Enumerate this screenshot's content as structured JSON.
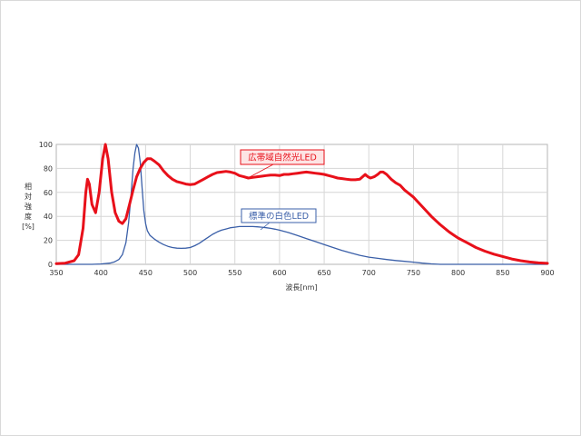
{
  "chart_data": {
    "type": "line",
    "title": "",
    "xlabel": "波長[nm]",
    "ylabel": [
      "相",
      "対",
      "強",
      "度",
      "[%]"
    ],
    "xlim": [
      350,
      900
    ],
    "ylim": [
      0,
      100
    ],
    "x_ticks": [
      350,
      400,
      450,
      500,
      550,
      600,
      650,
      700,
      750,
      800,
      850,
      900
    ],
    "y_ticks": [
      0,
      20,
      40,
      60,
      80,
      100
    ],
    "grid": true,
    "legend": "inline labels",
    "series": [
      {
        "name": "広帯域自然光LED",
        "color": "#e8101a",
        "points": [
          [
            350,
            0.5
          ],
          [
            360,
            1
          ],
          [
            370,
            3
          ],
          [
            375,
            8
          ],
          [
            380,
            30
          ],
          [
            383,
            60
          ],
          [
            385,
            71
          ],
          [
            387,
            67
          ],
          [
            390,
            50
          ],
          [
            394,
            43
          ],
          [
            398,
            60
          ],
          [
            402,
            88
          ],
          [
            405,
            100
          ],
          [
            408,
            88
          ],
          [
            412,
            60
          ],
          [
            416,
            43
          ],
          [
            420,
            36
          ],
          [
            424,
            34
          ],
          [
            428,
            38
          ],
          [
            432,
            50
          ],
          [
            436,
            62
          ],
          [
            440,
            73
          ],
          [
            444,
            80
          ],
          [
            448,
            85
          ],
          [
            452,
            88
          ],
          [
            456,
            88
          ],
          [
            460,
            86
          ],
          [
            465,
            83
          ],
          [
            470,
            78
          ],
          [
            475,
            74
          ],
          [
            480,
            71
          ],
          [
            485,
            69
          ],
          [
            490,
            68
          ],
          [
            495,
            67
          ],
          [
            500,
            66.5
          ],
          [
            505,
            67
          ],
          [
            510,
            69
          ],
          [
            515,
            71
          ],
          [
            520,
            73
          ],
          [
            525,
            75
          ],
          [
            530,
            76.5
          ],
          [
            535,
            77
          ],
          [
            540,
            77.5
          ],
          [
            545,
            77
          ],
          [
            550,
            76
          ],
          [
            555,
            74
          ],
          [
            560,
            73
          ],
          [
            565,
            72
          ],
          [
            570,
            72.5
          ],
          [
            575,
            73
          ],
          [
            580,
            73.5
          ],
          [
            585,
            74
          ],
          [
            590,
            74.5
          ],
          [
            595,
            74.5
          ],
          [
            600,
            74
          ],
          [
            605,
            75
          ],
          [
            610,
            75
          ],
          [
            615,
            75.5
          ],
          [
            620,
            76
          ],
          [
            625,
            76.5
          ],
          [
            630,
            77
          ],
          [
            635,
            76.5
          ],
          [
            640,
            76
          ],
          [
            645,
            75.5
          ],
          [
            650,
            75
          ],
          [
            655,
            74
          ],
          [
            660,
            73
          ],
          [
            665,
            72
          ],
          [
            670,
            71.5
          ],
          [
            675,
            71
          ],
          [
            680,
            70.5
          ],
          [
            685,
            70.5
          ],
          [
            690,
            71
          ],
          [
            693,
            73
          ],
          [
            696,
            75
          ],
          [
            699,
            73
          ],
          [
            702,
            72
          ],
          [
            706,
            73
          ],
          [
            710,
            75
          ],
          [
            713,
            77
          ],
          [
            716,
            77
          ],
          [
            720,
            75
          ],
          [
            725,
            71
          ],
          [
            730,
            68
          ],
          [
            735,
            66
          ],
          [
            740,
            62
          ],
          [
            745,
            59
          ],
          [
            750,
            56
          ],
          [
            755,
            52
          ],
          [
            760,
            48
          ],
          [
            765,
            44
          ],
          [
            770,
            40
          ],
          [
            775,
            36.5
          ],
          [
            780,
            33
          ],
          [
            785,
            30
          ],
          [
            790,
            27
          ],
          [
            795,
            24.5
          ],
          [
            800,
            22
          ],
          [
            810,
            18
          ],
          [
            820,
            14
          ],
          [
            830,
            11
          ],
          [
            840,
            8.5
          ],
          [
            850,
            6.5
          ],
          [
            860,
            4.5
          ],
          [
            870,
            3
          ],
          [
            880,
            2
          ],
          [
            890,
            1.2
          ],
          [
            900,
            0.8
          ]
        ]
      },
      {
        "name": "標準の白色LED",
        "color": "#3a5fa8",
        "points": [
          [
            350,
            0
          ],
          [
            390,
            0
          ],
          [
            400,
            0.3
          ],
          [
            410,
            1
          ],
          [
            415,
            2
          ],
          [
            420,
            4
          ],
          [
            424,
            8
          ],
          [
            428,
            18
          ],
          [
            431,
            35
          ],
          [
            434,
            60
          ],
          [
            436,
            80
          ],
          [
            438,
            93
          ],
          [
            440,
            100
          ],
          [
            442,
            97
          ],
          [
            444,
            85
          ],
          [
            446,
            65
          ],
          [
            448,
            45
          ],
          [
            450,
            34
          ],
          [
            452,
            28
          ],
          [
            455,
            24
          ],
          [
            460,
            21
          ],
          [
            465,
            18.5
          ],
          [
            470,
            16.5
          ],
          [
            475,
            15
          ],
          [
            480,
            14
          ],
          [
            485,
            13.5
          ],
          [
            490,
            13.3
          ],
          [
            495,
            13.5
          ],
          [
            500,
            14
          ],
          [
            505,
            15.5
          ],
          [
            510,
            17.5
          ],
          [
            515,
            20
          ],
          [
            520,
            22.5
          ],
          [
            525,
            25
          ],
          [
            530,
            27
          ],
          [
            535,
            28.5
          ],
          [
            540,
            29.5
          ],
          [
            545,
            30.5
          ],
          [
            550,
            31
          ],
          [
            555,
            31.5
          ],
          [
            560,
            31.5
          ],
          [
            565,
            31.5
          ],
          [
            570,
            31.5
          ],
          [
            575,
            31.3
          ],
          [
            580,
            31
          ],
          [
            585,
            30.5
          ],
          [
            590,
            30
          ],
          [
            595,
            29.3
          ],
          [
            600,
            28.5
          ],
          [
            610,
            26.5
          ],
          [
            620,
            24
          ],
          [
            630,
            21.5
          ],
          [
            640,
            19
          ],
          [
            650,
            16.5
          ],
          [
            660,
            14
          ],
          [
            670,
            11.5
          ],
          [
            680,
            9.5
          ],
          [
            690,
            7.5
          ],
          [
            700,
            6
          ],
          [
            710,
            5
          ],
          [
            720,
            4
          ],
          [
            730,
            3.2
          ],
          [
            740,
            2.5
          ],
          [
            750,
            1.8
          ],
          [
            760,
            1
          ],
          [
            770,
            0.4
          ],
          [
            780,
            0
          ],
          [
            900,
            0
          ]
        ]
      }
    ],
    "annotations": [
      {
        "text": "広帯域自然光LED",
        "series": 0,
        "border": "#e8101a",
        "fill": "#fde4e4",
        "text_color": "#e8101a"
      },
      {
        "text": "標準の白色LED",
        "series": 1,
        "border": "#3a5fa8",
        "fill": "#ffffff",
        "text_color": "#3a5fa8"
      }
    ]
  }
}
